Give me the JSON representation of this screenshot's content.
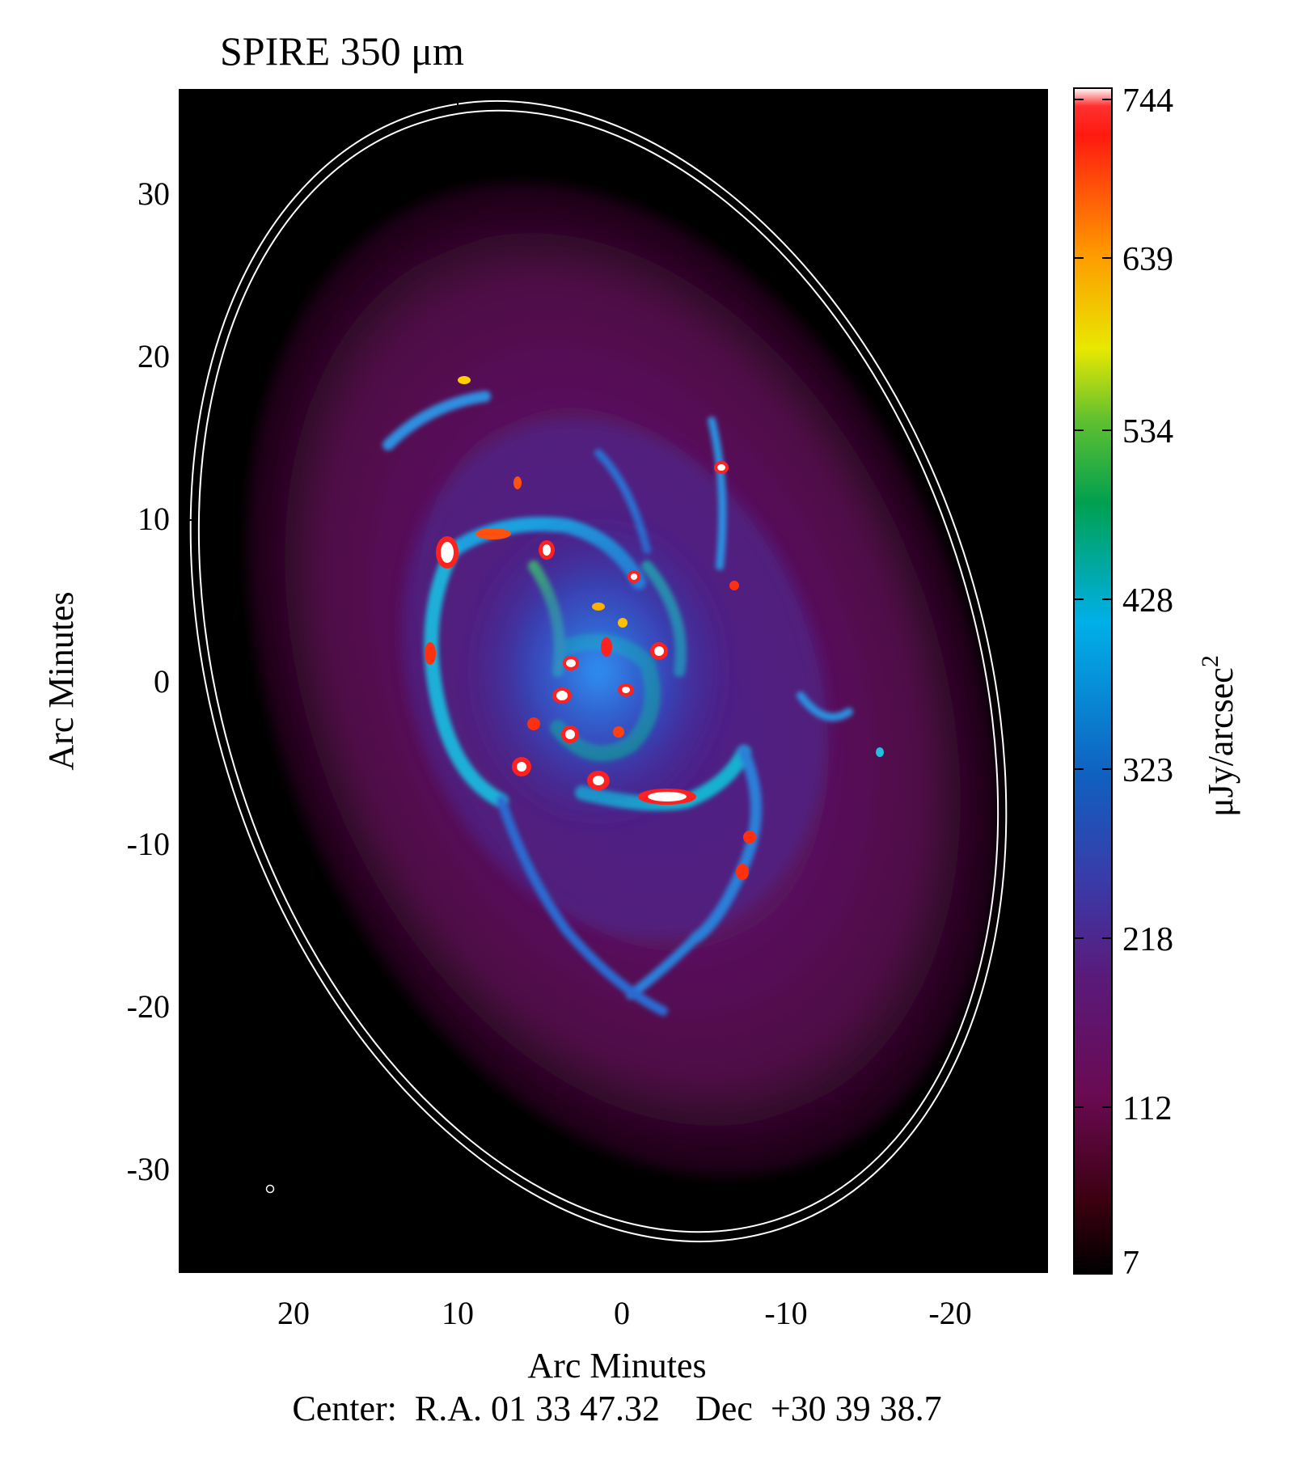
{
  "figure": {
    "title": "SPIRE 350 μm",
    "xlabel": "Arc Minutes",
    "ylabel": "Arc Minutes",
    "center_label": "Center:  R.A. 01 33 47.32    Dec  +30 39 38.7",
    "xticks": [
      "20",
      "10",
      "0",
      "-10",
      "-20"
    ],
    "yticks": [
      "30",
      "20",
      "10",
      "0",
      "-10",
      "-20",
      "-30"
    ]
  },
  "colorbar": {
    "label_main": "μJy/arcsec",
    "label_sup": "2",
    "ticks": [
      "744",
      "639",
      "534",
      "428",
      "323",
      "218",
      "112",
      "7"
    ]
  },
  "colors": {
    "background": "#000000",
    "disk": "#5a0c4a",
    "ring": "#ffffff"
  }
}
